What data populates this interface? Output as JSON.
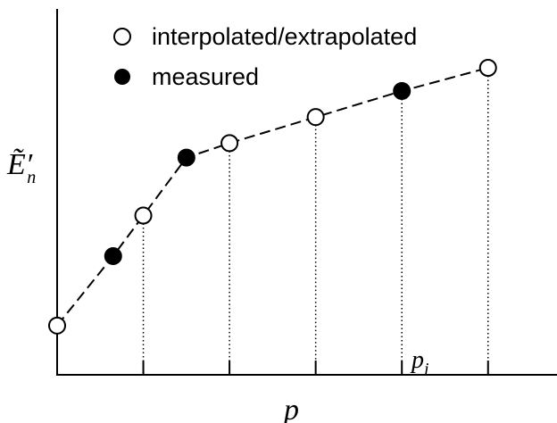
{
  "chart_data": {
    "type": "line",
    "title": "",
    "xlabel": "p",
    "ylabel": "Ẽ′",
    "ylabel_subscript": "n",
    "marked_tick_label": "p",
    "marked_tick_subscript": "i",
    "xlim": [
      0,
      5.8
    ],
    "ylim": [
      0,
      10
    ],
    "grid": false,
    "legend_position": "top-left",
    "legend": [
      {
        "label": "interpolated/extrapolated",
        "marker": "open-circle"
      },
      {
        "label": "measured",
        "marker": "filled-circle"
      }
    ],
    "ticks_x": [
      1,
      2,
      3,
      4,
      5
    ],
    "marked_tick_index": 3,
    "points": [
      {
        "x": 0.0,
        "y": 1.7,
        "kind": "interpolated"
      },
      {
        "x": 0.65,
        "y": 4.1,
        "kind": "measured"
      },
      {
        "x": 1.0,
        "y": 5.5,
        "kind": "interpolated"
      },
      {
        "x": 1.5,
        "y": 7.5,
        "kind": "measured"
      },
      {
        "x": 2.0,
        "y": 8.0,
        "kind": "interpolated"
      },
      {
        "x": 3.0,
        "y": 8.9,
        "kind": "interpolated"
      },
      {
        "x": 4.0,
        "y": 9.8,
        "kind": "measured"
      },
      {
        "x": 5.0,
        "y": 10.6,
        "kind": "interpolated"
      }
    ],
    "line_style": "dashed",
    "drop_lines": "dotted"
  },
  "colors": {
    "axis": "#000000",
    "line": "#000000",
    "open_fill": "#ffffff",
    "filled": "#000000"
  }
}
